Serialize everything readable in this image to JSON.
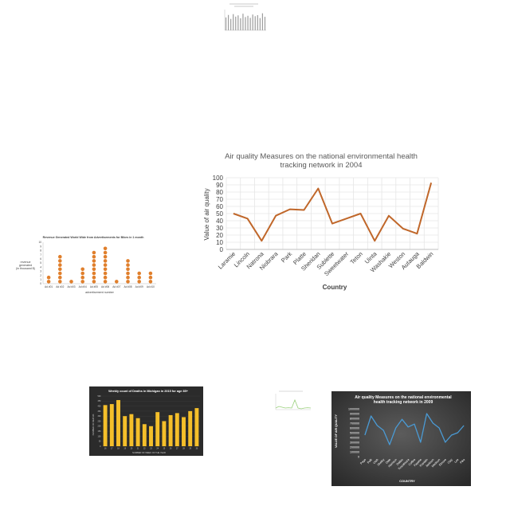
{
  "colors": {
    "line_main": "#c0672a",
    "grid": "#e6e6e6",
    "text": "#595959",
    "dots": "#e07f2c",
    "yellow_bar": "#f5bf2a",
    "dark_bg": "#3d3d3d",
    "dark_line": "#4a9ad4",
    "tiny_line": "#9bd17c"
  },
  "chart_data": [
    {
      "id": "main",
      "type": "line",
      "title": "Air quality Measures on the national environmental health tracking network in 2004",
      "title_lines": [
        "Air quality Measures on the national environmental health",
        "tracking network in 2004"
      ],
      "xlabel": "Country",
      "ylabel": "Value of air quality",
      "ylim": [
        0,
        100
      ],
      "yticks": [
        0,
        10,
        20,
        30,
        40,
        50,
        60,
        70,
        80,
        90,
        100
      ],
      "grid": true,
      "categories": [
        "Laramie",
        "Lincoln",
        "Natrona",
        "Niobrara",
        "Park",
        "Platte",
        "Sheridan",
        "Sublette",
        "Sweetwater",
        "Teton",
        "Uinta",
        "Washakie",
        "Weston",
        "Autauga",
        "Baldwin"
      ],
      "values": [
        50,
        43,
        12,
        47,
        56,
        55,
        85,
        36,
        43,
        50,
        12,
        47,
        29,
        22,
        93
      ]
    },
    {
      "id": "dots",
      "type": "scatter",
      "title": "Revenue Generated World Wide from Advertisements for Bikes in 1 month",
      "xlabel": "advertisement number",
      "ylabel": "revenue generated (in thousand $)",
      "ylim": [
        0,
        10
      ],
      "categories": [
        "Ad #01",
        "Ad #02",
        "Ad #03",
        "Ad #04",
        "Ad #05",
        "Ad #06",
        "Ad #07",
        "Ad #08",
        "Ad #09",
        "Ad #10"
      ],
      "values": [
        2,
        7,
        1,
        4,
        8,
        9,
        1,
        6,
        3,
        3
      ]
    },
    {
      "id": "yellow",
      "type": "bar",
      "title": "Weekly count of Deaths in Michigan in 2015 for age 85+",
      "xlabel": "NUMBER OF WEEK OF THE YEAR",
      "ylabel": "NUMBER OF DEATHS",
      "ylim": [
        0,
        500
      ],
      "values": [
        410,
        420,
        460,
        300,
        320,
        280,
        220,
        200,
        340,
        250,
        310,
        330,
        290,
        350,
        380
      ]
    },
    {
      "id": "dark",
      "type": "line",
      "title": "Air quality Measures on the national environmental health tracking network in 2009",
      "title_lines": [
        "Air quality Measures on the national environmental",
        "health tracking network in 2009"
      ],
      "xlabel": "COUNTRY",
      "ylabel": "VALUE OF AIR QUALITY",
      "ylim": [
        0,
        1000000
      ],
      "yticks": [
        0,
        100000,
        200000,
        300000,
        400000,
        500000,
        600000,
        700000,
        800000,
        900000,
        1000000
      ],
      "categories": [
        "Page",
        "Polk",
        "Utah",
        "Shelby",
        "Dale",
        "Harrison",
        "Dallas",
        "Tuscaloosa",
        "Coffee",
        "Fayette",
        "Franklin",
        "Jackson",
        "Madison",
        "Elmore",
        "Clay",
        "Lee",
        "Pike"
      ],
      "values": [
        450000,
        850000,
        650000,
        550000,
        250000,
        600000,
        780000,
        620000,
        680000,
        300000,
        900000,
        700000,
        600000,
        300000,
        450000,
        500000,
        650000
      ]
    },
    {
      "id": "top",
      "type": "bar",
      "ylim": [
        0,
        100
      ],
      "values": [
        62,
        74,
        55,
        78,
        66,
        72,
        58,
        80,
        64,
        70,
        60,
        76,
        68,
        73,
        59,
        82,
        65
      ]
    },
    {
      "id": "tiny",
      "type": "line",
      "ylim": [
        0,
        100
      ],
      "values": [
        10,
        20,
        15,
        10,
        12,
        10,
        60,
        10,
        5,
        10,
        12,
        10
      ]
    }
  ]
}
